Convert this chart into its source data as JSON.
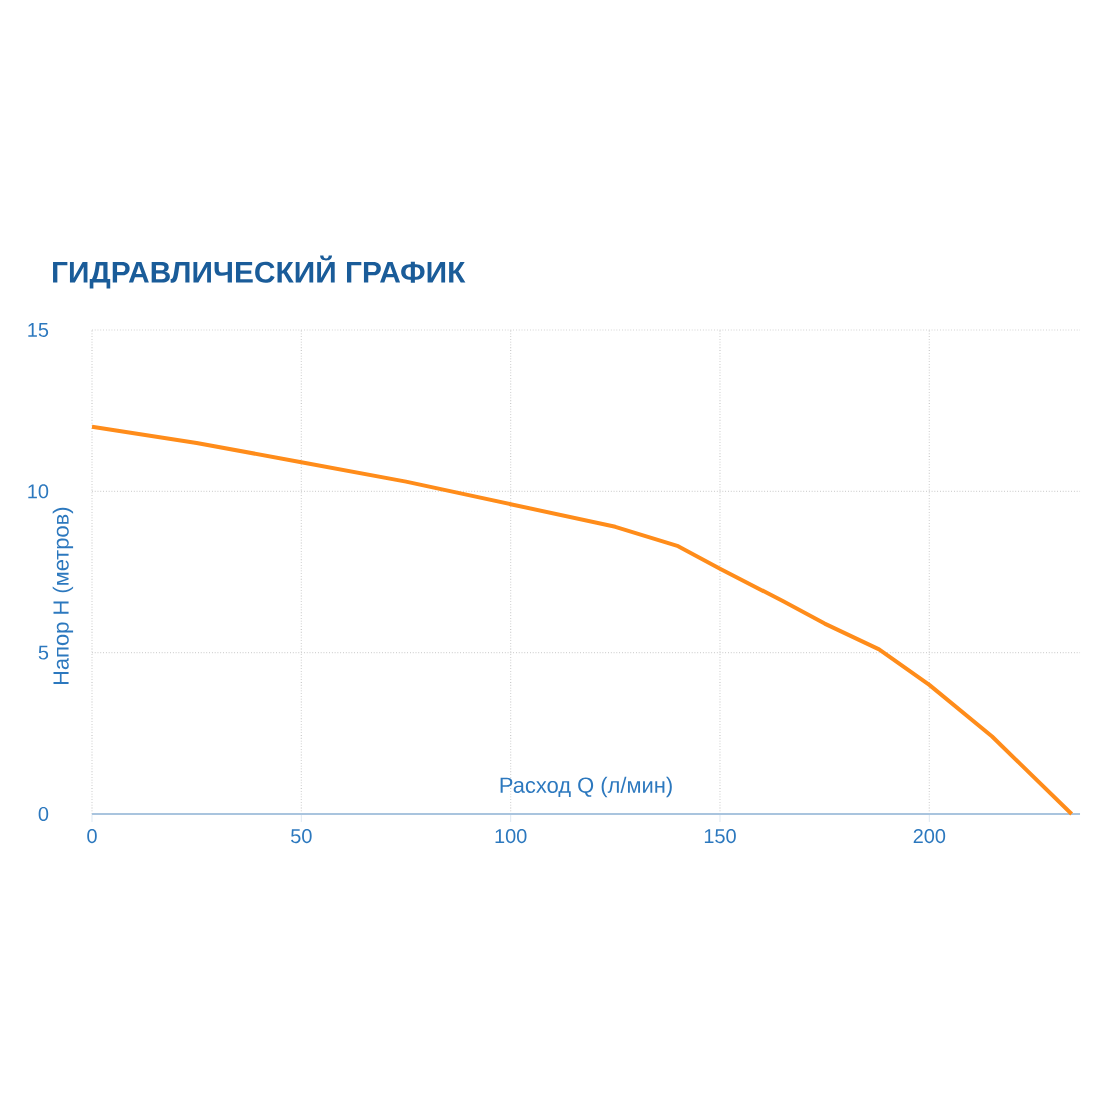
{
  "chart_data": {
    "type": "line",
    "title": "ГИДРАВЛИЧЕСКИЙ ГРАФИК",
    "xlabel": "Расход Q (л/мин)",
    "ylabel": "Напор H (метров)",
    "x": [
      0,
      25,
      50,
      75,
      100,
      125,
      140,
      150,
      165,
      175,
      188,
      200,
      215,
      234
    ],
    "series": [
      {
        "color": "#ff8c1a",
        "values": [
          12.0,
          11.5,
          10.9,
          10.3,
          9.6,
          8.9,
          8.3,
          7.6,
          6.6,
          5.9,
          5.1,
          4.0,
          2.4,
          0
        ]
      }
    ],
    "xlim": [
      0,
      236
    ],
    "ylim": [
      0,
      15
    ],
    "xticks": [
      0,
      50,
      100,
      150,
      200
    ],
    "yticks": [
      0,
      5,
      10,
      15
    ],
    "grid": true,
    "legend": false,
    "marker": "none",
    "line_style": "solid"
  }
}
